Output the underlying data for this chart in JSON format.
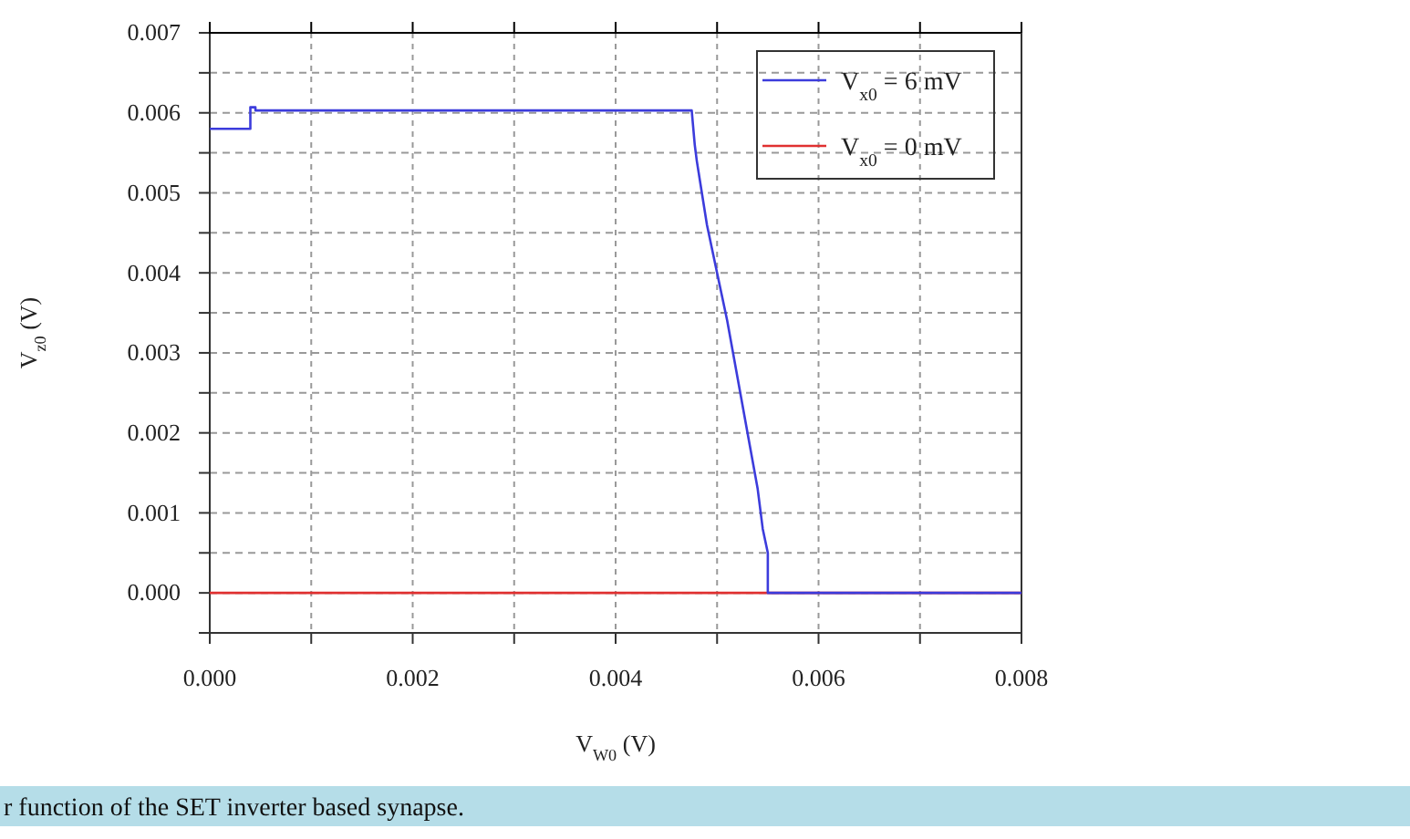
{
  "chart_data": {
    "type": "line",
    "xlabel": "V$_{W0}$ (V)",
    "ylabel": "V$_{z0}$ (V)",
    "xlim": [
      0,
      0.008
    ],
    "ylim": [
      -0.0005,
      0.007
    ],
    "xticks": [
      {
        "value": 0,
        "label": "0.000"
      },
      {
        "value": 0.001,
        "label": null
      },
      {
        "value": 0.002,
        "label": "0.002"
      },
      {
        "value": 0.003,
        "label": null
      },
      {
        "value": 0.004,
        "label": "0.004"
      },
      {
        "value": 0.005,
        "label": null
      },
      {
        "value": 0.006,
        "label": "0.006"
      },
      {
        "value": 0.007,
        "label": null
      },
      {
        "value": 0.008,
        "label": "0.008"
      }
    ],
    "yticks": [
      {
        "value": -0.0005,
        "label": null
      },
      {
        "value": 0,
        "label": "0.000"
      },
      {
        "value": 0.0005,
        "label": null
      },
      {
        "value": 0.001,
        "label": "0.001"
      },
      {
        "value": 0.0015,
        "label": null
      },
      {
        "value": 0.002,
        "label": "0.002"
      },
      {
        "value": 0.0025,
        "label": null
      },
      {
        "value": 0.003,
        "label": "0.003"
      },
      {
        "value": 0.0035,
        "label": null
      },
      {
        "value": 0.004,
        "label": "0.004"
      },
      {
        "value": 0.0045,
        "label": null
      },
      {
        "value": 0.005,
        "label": "0.005"
      },
      {
        "value": 0.0055,
        "label": null
      },
      {
        "value": 0.006,
        "label": "0.006"
      },
      {
        "value": 0.0065,
        "label": null
      },
      {
        "value": 0.007,
        "label": "0.007"
      }
    ],
    "grid": true,
    "legend": "top right",
    "line_style": "solid",
    "marker": "none",
    "series": [
      {
        "name": "V$_{x0}$ = 6 mV",
        "color": "#3c3cdc",
        "x": [
          0,
          0.0004,
          0.0004,
          0.00045,
          0.00045,
          0.00475,
          0.00478,
          0.0048,
          0.00485,
          0.0049,
          0.005,
          0.0051,
          0.0052,
          0.0053,
          0.0054,
          0.00545,
          0.0055,
          0.0055,
          0.008
        ],
        "values": [
          0.0058,
          0.0058,
          0.00607,
          0.00607,
          0.00603,
          0.00603,
          0.0056,
          0.0054,
          0.005,
          0.0046,
          0.004,
          0.0034,
          0.0027,
          0.002,
          0.0013,
          0.0008,
          0.0005,
          0,
          0
        ]
      },
      {
        "name": "V$_{x0}$ = 0 mV",
        "color": "#e03030",
        "x": [
          0,
          0.008
        ],
        "values": [
          0,
          0
        ]
      }
    ],
    "annotations": [
      "r function of the SET inverter based synapse."
    ]
  }
}
